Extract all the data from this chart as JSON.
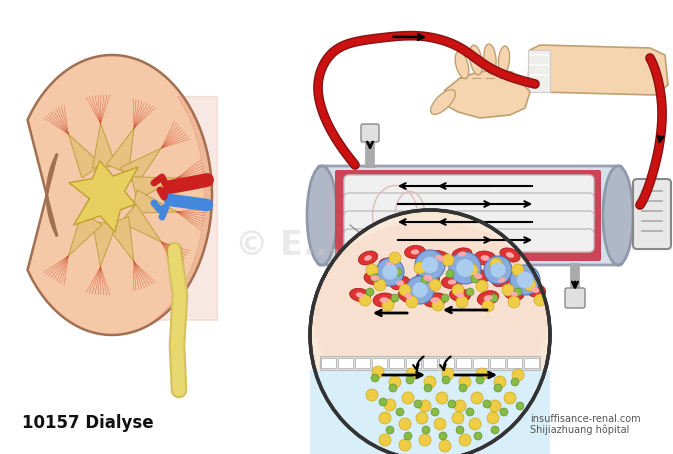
{
  "bg_color": "#ffffff",
  "title_text": "10157 Dialyse",
  "watermark1": "insuffisance-renal.com",
  "watermark2": "Shijiazhuang hôpital",
  "kidney_color": "#f5c8a8",
  "kidney_inner_color": "#e8d080",
  "kidney_cortex_color": "#f0b090",
  "blood_red": "#cc2020",
  "blood_dark_red": "#881111",
  "artery_blue": "#4488dd",
  "skin_color": "#f5d5b0",
  "skin_dark": "#e0b890",
  "dialyzer_outer": "#b0b8c8",
  "dialyzer_red_fill": "#cc4455",
  "dialyzer_pink": "#e88898",
  "tube_red": "#cc1111",
  "membrane_white": "#f0f0f0",
  "rbc_color": "#dd3333",
  "wbc_blue": "#88aadd",
  "wbc_light": "#aaccee",
  "particle_yellow": "#eecc44",
  "particle_green": "#88bb44",
  "dialysate_color": "#d8eef8",
  "blood_bg": "#f8e0d8",
  "arrow_color": "#111111",
  "connector_gray": "#aaaaaa",
  "filter_gray": "#cccccc"
}
